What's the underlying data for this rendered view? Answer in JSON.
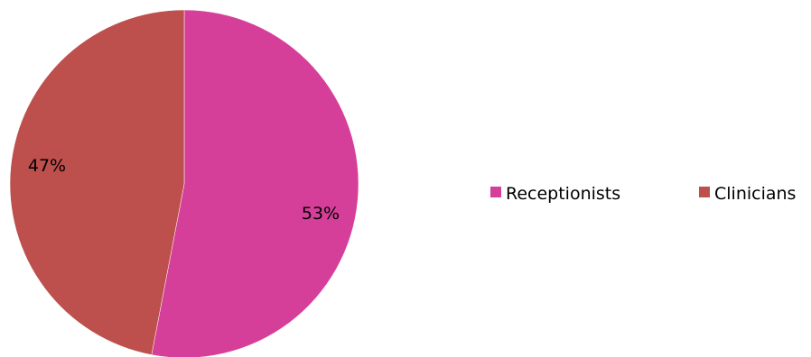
{
  "chart_data": {
    "type": "pie",
    "slices": [
      {
        "label": "Receptionists",
        "value": 53,
        "display": "53%",
        "color": "#d63f99"
      },
      {
        "label": "Clinicians",
        "value": 47,
        "display": "47%",
        "color": "#bd4f4c"
      }
    ],
    "start_angle": "12 o'clock",
    "direction": "clockwise",
    "legend_position": "right"
  }
}
